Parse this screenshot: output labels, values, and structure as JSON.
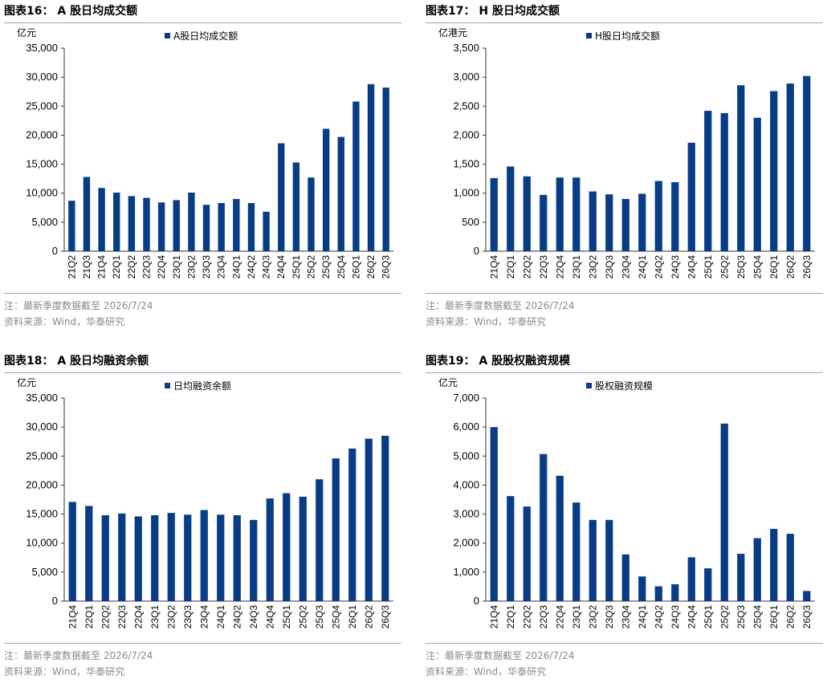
{
  "colors": {
    "bar": "#083c86",
    "rule": "#9aa4b5",
    "note": "#8a8a8a"
  },
  "panels": [
    {
      "title": "图表16：  A 股日均成交额",
      "note": "注：最新季度数据截至 2026/7/24",
      "source": "资料来源：Wind，华泰研究",
      "chart_data": {
        "type": "bar",
        "unit": "亿元",
        "legend": "A股日均成交额",
        "categories": [
          "21Q2",
          "21Q3",
          "21Q4",
          "22Q1",
          "22Q2",
          "22Q3",
          "22Q4",
          "23Q1",
          "23Q2",
          "23Q3",
          "23Q4",
          "24Q1",
          "24Q2",
          "24Q3",
          "24Q4",
          "25Q1",
          "25Q2",
          "25Q3",
          "25Q4",
          "26Q1",
          "26Q2",
          "26Q3"
        ],
        "values": [
          8700,
          12800,
          10900,
          10100,
          9500,
          9200,
          8400,
          8800,
          10100,
          8000,
          8300,
          9000,
          8300,
          6800,
          18600,
          15300,
          12700,
          21100,
          19700,
          25800,
          28800,
          28200
        ],
        "ylim": [
          0,
          35000
        ],
        "yticks": [
          0,
          5000,
          10000,
          15000,
          20000,
          25000,
          30000,
          35000
        ],
        "ytick_labels": [
          "0",
          "5,000",
          "10,000",
          "15,000",
          "20,000",
          "25,000",
          "30,000",
          "35,000"
        ]
      }
    },
    {
      "title": "图表17：  H 股日均成交额",
      "note": "注：最新季度数据截至 2026/7/24",
      "source": "资料来源：Wind，华泰研究",
      "chart_data": {
        "type": "bar",
        "unit": "亿港元",
        "legend": "H股日均成交额",
        "categories": [
          "21Q4",
          "22Q1",
          "22Q2",
          "22Q3",
          "22Q4",
          "23Q1",
          "23Q2",
          "23Q3",
          "23Q4",
          "24Q1",
          "24Q2",
          "24Q3",
          "24Q4",
          "25Q1",
          "25Q2",
          "25Q3",
          "25Q4",
          "26Q1",
          "26Q2",
          "26Q3"
        ],
        "values": [
          1260,
          1460,
          1290,
          970,
          1270,
          1270,
          1030,
          980,
          900,
          990,
          1210,
          1190,
          1870,
          2420,
          2380,
          2860,
          2300,
          2760,
          2890,
          3020
        ],
        "ylim": [
          0,
          3500
        ],
        "yticks": [
          0,
          500,
          1000,
          1500,
          2000,
          2500,
          3000,
          3500
        ],
        "ytick_labels": [
          "0",
          "500",
          "1,000",
          "1,500",
          "2,000",
          "2,500",
          "3,000",
          "3,500"
        ]
      }
    },
    {
      "title": "图表18：  A 股日均融资余额",
      "note": "注：最新季度数据截至 2026/7/24",
      "source": "资料来源：Wind，华泰研究",
      "chart_data": {
        "type": "bar",
        "unit": "亿元",
        "legend": "日均融资余额",
        "categories": [
          "21Q4",
          "22Q1",
          "22Q2",
          "22Q3",
          "22Q4",
          "23Q1",
          "23Q2",
          "23Q3",
          "23Q4",
          "24Q1",
          "24Q2",
          "24Q3",
          "24Q4",
          "25Q1",
          "25Q2",
          "25Q3",
          "25Q4",
          "26Q1",
          "26Q2",
          "26Q3"
        ],
        "values": [
          17100,
          16400,
          14800,
          15100,
          14600,
          14800,
          15200,
          14900,
          15700,
          14900,
          14800,
          14000,
          17700,
          18600,
          18000,
          21000,
          24600,
          26300,
          28000,
          28500
        ],
        "ylim": [
          0,
          35000
        ],
        "yticks": [
          0,
          5000,
          10000,
          15000,
          20000,
          25000,
          30000,
          35000
        ],
        "ytick_labels": [
          "0",
          "5,000",
          "10,000",
          "15,000",
          "20,000",
          "25,000",
          "30,000",
          "35,000"
        ]
      }
    },
    {
      "title": "图表19：  A 股股权融资规模",
      "note": "注：最新季度数据截至 2026/7/24",
      "source": "资料来源：Wind，华泰研究",
      "chart_data": {
        "type": "bar",
        "unit": "亿元",
        "legend": "股权融资规模",
        "categories": [
          "21Q4",
          "22Q1",
          "22Q2",
          "22Q3",
          "22Q4",
          "23Q1",
          "23Q2",
          "23Q3",
          "23Q4",
          "24Q1",
          "24Q2",
          "24Q3",
          "24Q4",
          "25Q1",
          "25Q2",
          "25Q3",
          "25Q4",
          "26Q1",
          "26Q2",
          "26Q3"
        ],
        "values": [
          6000,
          3620,
          3260,
          5070,
          4320,
          3400,
          2800,
          2800,
          1610,
          850,
          510,
          580,
          1510,
          1130,
          6120,
          1630,
          2170,
          2490,
          2320,
          350
        ],
        "ylim": [
          0,
          7000
        ],
        "yticks": [
          0,
          1000,
          2000,
          3000,
          4000,
          5000,
          6000,
          7000
        ],
        "ytick_labels": [
          "0",
          "1,000",
          "2,000",
          "3,000",
          "4,000",
          "5,000",
          "6,000",
          "7,000"
        ]
      }
    }
  ]
}
